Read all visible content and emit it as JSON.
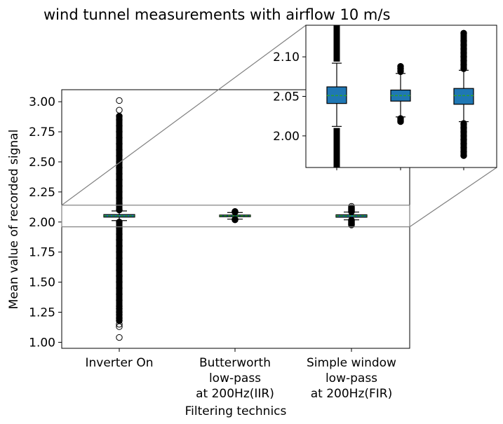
{
  "chart_data": {
    "type": "boxplot",
    "title": "wind tunnel measurements with airflow 10 m/s",
    "xlabel": "Filtering technics",
    "ylabel": "Mean value of recorded signal",
    "ylim": [
      0.95,
      3.1
    ],
    "yticks": [
      "1.00",
      "1.25",
      "1.50",
      "1.75",
      "2.00",
      "2.25",
      "2.50",
      "2.75",
      "3.00"
    ],
    "categories": [
      [
        "Inverter On"
      ],
      [
        "Butterworth",
        "low-pass",
        "at 200Hz(IIR)"
      ],
      [
        "Simple window",
        "low-pass",
        "at 200Hz(FIR)"
      ]
    ],
    "box_color": "#1f77b4",
    "median_color": "#2ca02c",
    "boxes": [
      {
        "q1": 2.041,
        "median": 2.051,
        "q3": 2.062,
        "whisker_low": 2.012,
        "whisker_high": 2.092,
        "outliers_low": [
          1.04,
          1.13,
          1.15,
          1.18,
          1.2,
          1.23,
          1.25,
          1.28,
          1.3,
          1.35,
          1.4,
          1.45,
          1.5,
          1.55,
          1.6,
          1.65,
          1.7,
          1.75,
          1.8,
          1.85,
          1.9,
          1.95,
          2.0
        ],
        "outliers_high": [
          2.1,
          2.15,
          2.2,
          2.25,
          2.3,
          2.35,
          2.4,
          2.45,
          2.5,
          2.55,
          2.6,
          2.65,
          2.7,
          2.75,
          2.8,
          2.85,
          2.88,
          2.93,
          3.01
        ]
      },
      {
        "q1": 2.044,
        "median": 2.051,
        "q3": 2.058,
        "whisker_low": 2.024,
        "whisker_high": 2.079,
        "outliers_low": [
          2.018,
          2.02,
          2.022
        ],
        "outliers_high": [
          2.082,
          2.085,
          2.088
        ]
      },
      {
        "q1": 2.04,
        "median": 2.051,
        "q3": 2.06,
        "whisker_low": 2.018,
        "whisker_high": 2.083,
        "outliers_low": [
          1.975,
          1.98,
          1.985,
          1.99,
          1.995,
          2.0,
          2.005,
          2.01,
          2.015
        ],
        "outliers_high": [
          2.085,
          2.09,
          2.095,
          2.1,
          2.105,
          2.11,
          2.115,
          2.12,
          2.13
        ]
      }
    ],
    "inset": {
      "ylim": [
        1.96,
        2.14
      ],
      "yticks": [
        "2.00",
        "2.05",
        "2.10"
      ]
    }
  }
}
